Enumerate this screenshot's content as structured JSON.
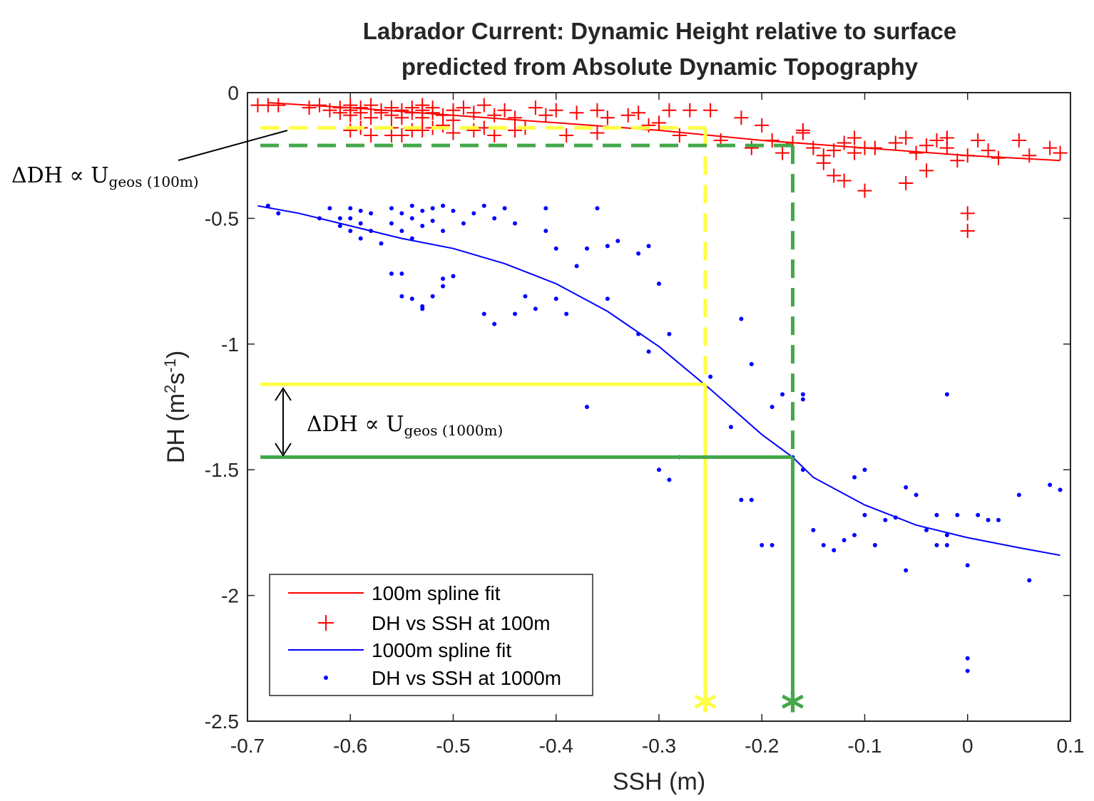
{
  "chart_data": {
    "type": "scatter",
    "title_lines": [
      "Labrador Current: Dynamic Height relative to surface",
      "predicted from Absolute Dynamic Topography"
    ],
    "xlabel": "SSH (m)",
    "ylabel": "DH (m",
    "ylabel_sup1": "2",
    "ylabel_mid": "s",
    "ylabel_sup2": "-1",
    "ylabel_end": ")",
    "xlim": [
      -0.7,
      0.1
    ],
    "ylim": [
      -2.5,
      0
    ],
    "xticks": [
      -0.7,
      -0.6,
      -0.5,
      -0.4,
      -0.3,
      -0.2,
      -0.1,
      0,
      0.1
    ],
    "xtick_labels": [
      "-0.7",
      "-0.6",
      "-0.5",
      "-0.4",
      "-0.3",
      "-0.2",
      "-0.1",
      "0",
      "0.1"
    ],
    "yticks": [
      0,
      -0.5,
      -1,
      -1.5,
      -2,
      -2.5
    ],
    "ytick_labels": [
      "0",
      "-0.5",
      "-1",
      "-1.5",
      "-2",
      "-2.5"
    ],
    "legend_position": "bottom-left",
    "legend": [
      {
        "label": "100m spline fit",
        "marker": "line",
        "color": "#ff0000"
      },
      {
        "label": "DH vs SSH at 100m",
        "marker": "plus",
        "color": "#ff0000"
      },
      {
        "label": "1000m spline fit",
        "marker": "line",
        "color": "#0000ff"
      },
      {
        "label": "DH vs SSH at 1000m",
        "marker": "dot",
        "color": "#0000ff"
      }
    ],
    "series": [
      {
        "name": "100m spline fit",
        "kind": "line",
        "color": "#ff0000",
        "x": [
          -0.68,
          -0.6,
          -0.5,
          -0.4,
          -0.3,
          -0.2,
          -0.1,
          0,
          0.09
        ],
        "y": [
          -0.04,
          -0.06,
          -0.09,
          -0.12,
          -0.15,
          -0.19,
          -0.22,
          -0.25,
          -0.27
        ]
      },
      {
        "name": "DH vs SSH at 100m",
        "kind": "plus",
        "color": "#ff0000",
        "x": [
          -0.69,
          -0.68,
          -0.67,
          -0.64,
          -0.63,
          -0.62,
          -0.61,
          -0.61,
          -0.6,
          -0.6,
          -0.6,
          -0.59,
          -0.59,
          -0.58,
          -0.58,
          -0.57,
          -0.57,
          -0.56,
          -0.56,
          -0.55,
          -0.55,
          -0.54,
          -0.54,
          -0.53,
          -0.53,
          -0.53,
          -0.52,
          -0.52,
          -0.51,
          -0.5,
          -0.5,
          -0.49,
          -0.48,
          -0.47,
          -0.46,
          -0.45,
          -0.44,
          -0.42,
          -0.41,
          -0.4,
          -0.38,
          -0.36,
          -0.35,
          -0.33,
          -0.32,
          -0.31,
          -0.3,
          -0.29,
          -0.27,
          -0.25,
          -0.22,
          -0.2,
          -0.19,
          -0.17,
          -0.16,
          -0.15,
          -0.14,
          -0.14,
          -0.13,
          -0.12,
          -0.12,
          -0.11,
          -0.11,
          -0.1,
          -0.09,
          -0.07,
          -0.06,
          -0.05,
          -0.04,
          -0.03,
          -0.02,
          -0.02,
          -0.01,
          0,
          0.01,
          0.02,
          0.03,
          0.05,
          0.06,
          0.08,
          0.09,
          -0.6,
          -0.59,
          -0.58,
          -0.56,
          -0.55,
          -0.54,
          -0.53,
          -0.51,
          -0.5,
          -0.48,
          -0.46,
          -0.43,
          -0.39,
          -0.36,
          -0.28,
          -0.24,
          -0.21,
          -0.18,
          -0.16,
          -0.13,
          -0.1,
          -0.06,
          -0.04,
          -0.02,
          0,
          0.0,
          -0.56,
          -0.52,
          -0.47,
          -0.44
        ],
        "y": [
          -0.05,
          -0.05,
          -0.05,
          -0.06,
          -0.05,
          -0.07,
          -0.06,
          -0.08,
          -0.05,
          -0.07,
          -0.09,
          -0.06,
          -0.08,
          -0.05,
          -0.1,
          -0.07,
          -0.08,
          -0.06,
          -0.09,
          -0.07,
          -0.1,
          -0.06,
          -0.08,
          -0.07,
          -0.05,
          -0.1,
          -0.08,
          -0.06,
          -0.09,
          -0.07,
          -0.11,
          -0.06,
          -0.08,
          -0.05,
          -0.09,
          -0.07,
          -0.1,
          -0.06,
          -0.09,
          -0.07,
          -0.08,
          -0.07,
          -0.1,
          -0.09,
          -0.08,
          -0.13,
          -0.12,
          -0.07,
          -0.07,
          -0.07,
          -0.1,
          -0.13,
          -0.19,
          -0.2,
          -0.15,
          -0.22,
          -0.25,
          -0.28,
          -0.33,
          -0.35,
          -0.2,
          -0.18,
          -0.24,
          -0.22,
          -0.22,
          -0.2,
          -0.18,
          -0.24,
          -0.21,
          -0.19,
          -0.22,
          -0.18,
          -0.27,
          -0.25,
          -0.19,
          -0.23,
          -0.26,
          -0.19,
          -0.25,
          -0.22,
          -0.24,
          -0.15,
          -0.14,
          -0.17,
          -0.14,
          -0.17,
          -0.15,
          -0.15,
          -0.13,
          -0.16,
          -0.15,
          -0.17,
          -0.14,
          -0.17,
          -0.16,
          -0.17,
          -0.19,
          -0.22,
          -0.24,
          -0.16,
          -0.23,
          -0.39,
          -0.36,
          -0.31,
          -0.18,
          -0.48,
          -0.55,
          -0.17,
          -0.14,
          -0.14,
          -0.15
        ]
      },
      {
        "name": "1000m spline fit",
        "kind": "line",
        "color": "#0000ff",
        "x": [
          -0.69,
          -0.65,
          -0.6,
          -0.55,
          -0.5,
          -0.45,
          -0.4,
          -0.35,
          -0.3,
          -0.25,
          -0.2,
          -0.17,
          -0.15,
          -0.1,
          -0.05,
          0,
          0.05,
          0.09
        ],
        "y": [
          -0.45,
          -0.48,
          -0.53,
          -0.58,
          -0.62,
          -0.68,
          -0.76,
          -0.87,
          -1.01,
          -1.18,
          -1.36,
          -1.45,
          -1.53,
          -1.64,
          -1.72,
          -1.77,
          -1.81,
          -1.84
        ]
      },
      {
        "name": "DH vs SSH at 1000m",
        "kind": "dot",
        "color": "#0000ff",
        "x": [
          -0.68,
          -0.67,
          -0.63,
          -0.62,
          -0.61,
          -0.61,
          -0.6,
          -0.6,
          -0.6,
          -0.59,
          -0.59,
          -0.59,
          -0.58,
          -0.58,
          -0.57,
          -0.56,
          -0.56,
          -0.55,
          -0.55,
          -0.54,
          -0.54,
          -0.54,
          -0.53,
          -0.53,
          -0.52,
          -0.52,
          -0.51,
          -0.51,
          -0.5,
          -0.49,
          -0.48,
          -0.47,
          -0.46,
          -0.45,
          -0.44,
          -0.41,
          -0.41,
          -0.4,
          -0.38,
          -0.37,
          -0.36,
          -0.35,
          -0.34,
          -0.32,
          -0.31,
          -0.3,
          -0.29,
          -0.28,
          -0.25,
          -0.23,
          -0.22,
          -0.21,
          -0.2,
          -0.19,
          -0.18,
          -0.17,
          -0.16,
          -0.16,
          -0.15,
          -0.14,
          -0.13,
          -0.12,
          -0.11,
          -0.1,
          -0.1,
          -0.09,
          -0.08,
          -0.07,
          -0.06,
          -0.05,
          -0.04,
          -0.03,
          -0.02,
          -0.02,
          -0.01,
          0,
          0.01,
          0.02,
          0.03,
          0.05,
          0.06,
          0.08,
          0.09,
          -0.56,
          -0.55,
          -0.54,
          -0.53,
          -0.52,
          -0.51,
          -0.5,
          -0.47,
          -0.43,
          -0.42,
          -0.4,
          -0.39,
          -0.37,
          -0.35,
          -0.32,
          -0.31,
          -0.29,
          -0.3,
          -0.22,
          -0.21,
          -0.19,
          -0.16,
          -0.11,
          -0.09,
          -0.06,
          -0.03,
          -0.02,
          0,
          0.0,
          -0.55,
          -0.53,
          -0.51,
          -0.46,
          -0.44
        ],
        "y": [
          -0.45,
          -0.48,
          -0.5,
          -0.46,
          -0.5,
          -0.53,
          -0.46,
          -0.5,
          -0.55,
          -0.47,
          -0.52,
          -0.58,
          -0.48,
          -0.55,
          -0.6,
          -0.46,
          -0.52,
          -0.48,
          -0.55,
          -0.45,
          -0.5,
          -0.58,
          -0.47,
          -0.53,
          -0.46,
          -0.51,
          -0.45,
          -0.55,
          -0.47,
          -0.52,
          -0.48,
          -0.45,
          -0.5,
          -0.46,
          -0.52,
          -0.55,
          -0.46,
          -0.62,
          -0.69,
          -0.62,
          -0.46,
          -0.61,
          -0.59,
          -0.64,
          -0.61,
          -0.76,
          -0.96,
          -1.45,
          -1.13,
          -1.33,
          -0.9,
          -1.62,
          -1.8,
          -1.25,
          -1.2,
          -1.45,
          -1.22,
          -1.5,
          -1.74,
          -1.8,
          -1.82,
          -1.78,
          -1.53,
          -1.68,
          -1.5,
          -1.8,
          -1.7,
          -1.69,
          -1.57,
          -1.6,
          -1.74,
          -1.68,
          -1.76,
          -1.8,
          -1.68,
          -1.88,
          -1.68,
          -1.7,
          -1.7,
          -1.6,
          -1.94,
          -1.56,
          -1.58,
          -0.72,
          -0.72,
          -0.82,
          -0.85,
          -0.81,
          -0.74,
          -0.73,
          -0.88,
          -0.81,
          -0.86,
          -0.82,
          -0.88,
          -1.25,
          -0.82,
          -0.96,
          -1.03,
          -1.54,
          -1.5,
          -1.62,
          -1.08,
          -1.8,
          -1.2,
          -1.76,
          -1.8,
          -1.9,
          -1.8,
          -1.2,
          -2.25,
          -2.3,
          -0.81,
          -0.86,
          -0.77,
          -0.92,
          -0.88
        ]
      }
    ],
    "guide_lines": [
      {
        "color": "#ffff44",
        "ssh": -0.255,
        "dh_1000m": -1.16,
        "dh_100m": -0.14
      },
      {
        "color": "#44a84a",
        "ssh": -0.17,
        "dh_1000m": -1.45,
        "dh_100m": -0.21
      }
    ],
    "annotations": {
      "delta_100m_main": "ΔDH ∝ U",
      "delta_100m_sub": "geos (100m)",
      "delta_1000m_main": "ΔDH ∝ U",
      "delta_1000m_sub": "geos (1000m)",
      "marker_symbol": "*"
    },
    "grid": false
  }
}
